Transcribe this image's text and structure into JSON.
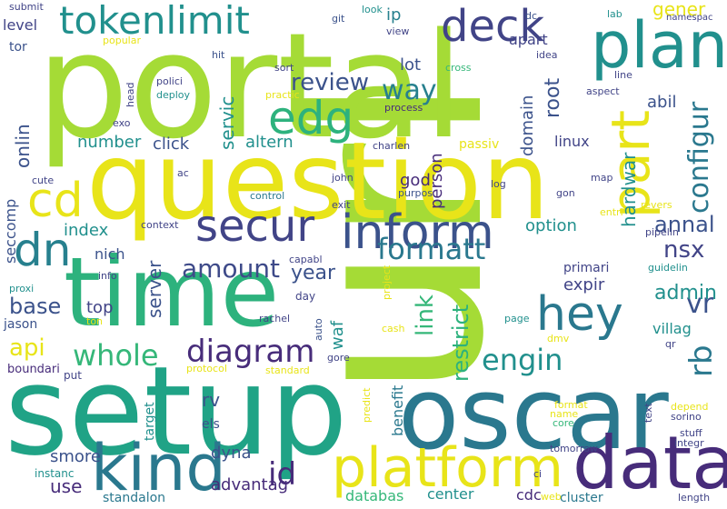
{
  "words": [
    {
      "text": "url"
    },
    {
      "text": "portal"
    },
    {
      "text": "question"
    },
    {
      "text": "setup"
    },
    {
      "text": "oscar"
    },
    {
      "text": "time"
    },
    {
      "text": "data"
    },
    {
      "text": "kind"
    },
    {
      "text": "platform"
    },
    {
      "text": "plan"
    },
    {
      "text": "secur"
    },
    {
      "text": "inform"
    },
    {
      "text": "hey"
    },
    {
      "text": "part"
    },
    {
      "text": "tokenlimit"
    },
    {
      "text": "deck"
    },
    {
      "text": "edg"
    },
    {
      "text": "cd"
    },
    {
      "text": "dn"
    },
    {
      "text": "diagram"
    },
    {
      "text": "whole"
    },
    {
      "text": "configur"
    },
    {
      "text": "formatt"
    },
    {
      "text": "engin"
    },
    {
      "text": "rb"
    },
    {
      "text": "vr"
    },
    {
      "text": "nsx"
    },
    {
      "text": "amount"
    },
    {
      "text": "review"
    },
    {
      "text": "way"
    },
    {
      "text": "admin"
    },
    {
      "text": "id"
    },
    {
      "text": "api"
    },
    {
      "text": "base"
    },
    {
      "text": "year"
    },
    {
      "text": "link"
    },
    {
      "text": "restrict"
    },
    {
      "text": "annal"
    },
    {
      "text": "option"
    },
    {
      "text": "index"
    },
    {
      "text": "server"
    },
    {
      "text": "servic"
    },
    {
      "text": "top"
    },
    {
      "text": "onlin"
    },
    {
      "text": "hardwar"
    },
    {
      "text": "domain"
    },
    {
      "text": "root"
    },
    {
      "text": "person"
    },
    {
      "text": "god"
    },
    {
      "text": "waf"
    },
    {
      "text": "villag"
    },
    {
      "text": "expir"
    },
    {
      "text": "altern"
    },
    {
      "text": "number"
    },
    {
      "text": "click"
    },
    {
      "text": "lot"
    },
    {
      "text": "ip"
    },
    {
      "text": "apart"
    },
    {
      "text": "gener"
    },
    {
      "text": "abil"
    },
    {
      "text": "linux"
    },
    {
      "text": "nich"
    },
    {
      "text": "rv"
    },
    {
      "text": "dyna"
    },
    {
      "text": "smore"
    },
    {
      "text": "use"
    },
    {
      "text": "advantag"
    },
    {
      "text": "databas"
    },
    {
      "text": "center"
    },
    {
      "text": "cdc"
    },
    {
      "text": "benefit"
    },
    {
      "text": "seccomp"
    },
    {
      "text": "level"
    },
    {
      "text": "tor"
    },
    {
      "text": "primari"
    },
    {
      "text": "cluster"
    },
    {
      "text": "standalon"
    },
    {
      "text": "passiv"
    },
    {
      "text": "jason"
    },
    {
      "text": "boundari"
    },
    {
      "text": "put"
    },
    {
      "text": "instanc"
    },
    {
      "text": "target"
    },
    {
      "text": "els"
    },
    {
      "text": "submit"
    },
    {
      "text": "git"
    },
    {
      "text": "look"
    },
    {
      "text": "view"
    },
    {
      "text": "dc"
    },
    {
      "text": "lab"
    },
    {
      "text": "namespac"
    },
    {
      "text": "popular"
    },
    {
      "text": "hit"
    },
    {
      "text": "sort"
    },
    {
      "text": "cross"
    },
    {
      "text": "idea"
    },
    {
      "text": "line"
    },
    {
      "text": "polici"
    },
    {
      "text": "head"
    },
    {
      "text": "deploy"
    },
    {
      "text": "practic"
    },
    {
      "text": "aspect"
    },
    {
      "text": "process"
    },
    {
      "text": "exo"
    },
    {
      "text": "charlen"
    },
    {
      "text": "john"
    },
    {
      "text": "ac"
    },
    {
      "text": "cute"
    },
    {
      "text": "log"
    },
    {
      "text": "map"
    },
    {
      "text": "control"
    },
    {
      "text": "purpos"
    },
    {
      "text": "gon"
    },
    {
      "text": "exit"
    },
    {
      "text": "entri"
    },
    {
      "text": "revers"
    },
    {
      "text": "context"
    },
    {
      "text": "pipelin"
    },
    {
      "text": "capabl"
    },
    {
      "text": "guidelin"
    },
    {
      "text": "info"
    },
    {
      "text": "proxi"
    },
    {
      "text": "project"
    },
    {
      "text": "day"
    },
    {
      "text": "rachel"
    },
    {
      "text": "ton"
    },
    {
      "text": "auto"
    },
    {
      "text": "page"
    },
    {
      "text": "cash"
    },
    {
      "text": "dmv"
    },
    {
      "text": "qr"
    },
    {
      "text": "gore"
    },
    {
      "text": "protocol"
    },
    {
      "text": "standard"
    },
    {
      "text": "predict"
    },
    {
      "text": "format"
    },
    {
      "text": "name"
    },
    {
      "text": "core"
    },
    {
      "text": "text"
    },
    {
      "text": "depend"
    },
    {
      "text": "sorino"
    },
    {
      "text": "stuff"
    },
    {
      "text": "integr"
    },
    {
      "text": "tomorrow"
    },
    {
      "text": "ci"
    },
    {
      "text": "web"
    },
    {
      "text": "length"
    }
  ]
}
